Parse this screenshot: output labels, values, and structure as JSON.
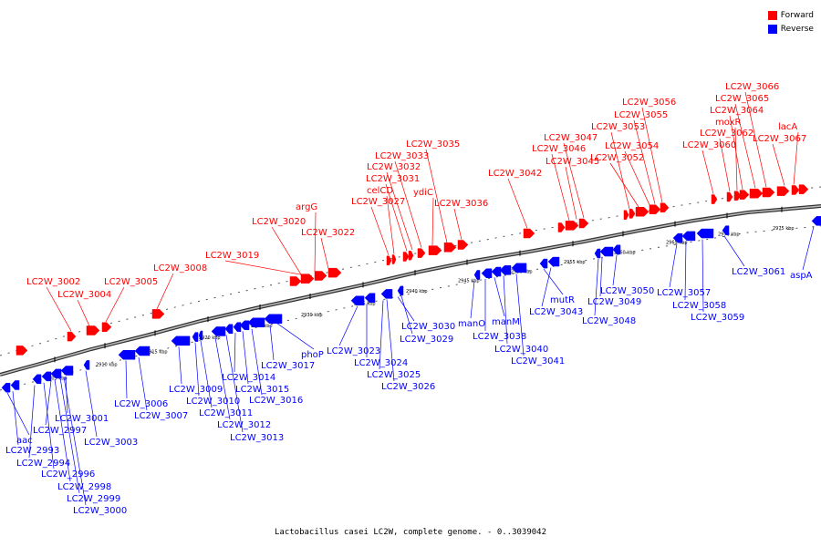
{
  "legend": {
    "forward_label": "Forward",
    "reverse_label": "Reverse",
    "forward_color": "#ff0000",
    "reverse_color": "#0000ff"
  },
  "caption": "Lactobacillus casei LC2W, complete genome. - 0..3039042",
  "ticks": [
    "2905 kbp",
    "2910 kbp",
    "2915 kbp",
    "2920 kbp",
    "2925 kbp",
    "2930 kbp",
    "2935 kbp",
    "2940 kbp",
    "2945 kbp",
    "2950 kbp",
    "2955 kbp",
    "2960 kbp",
    "2965 kbp",
    "2970 kbp",
    "2975 kbp"
  ],
  "forward_labels": [
    "LC2W_3002",
    "LC2W_3004",
    "LC2W_3005",
    "LC2W_3008",
    "LC2W_3019",
    "LC2W_3020",
    "argG",
    "LC2W_3022",
    "LC2W_3027",
    "celCD",
    "LC2W_3031",
    "LC2W_3032",
    "LC2W_3033",
    "LC2W_3035",
    "ydiC",
    "LC2W_3036",
    "LC2W_3042",
    "LC2W_3045",
    "LC2W_3046",
    "LC2W_3047",
    "LC2W_3052",
    "LC2W_3054",
    "LC2W_3053",
    "LC2W_3055",
    "LC2W_3056",
    "LC2W_3060",
    "LC2W_3062",
    "moxR",
    "LC2W_3064",
    "LC2W_3065",
    "LC2W_3066",
    "LC2W_3067",
    "lacA"
  ],
  "reverse_labels": [
    "aac",
    "LC2W_2993",
    "LC2W_2994",
    "LC2W_2996",
    "LC2W_2997",
    "LC2W_2998",
    "LC2W_2999",
    "LC2W_3000",
    "LC2W_3001",
    "LC2W_3003",
    "LC2W_3006",
    "LC2W_3007",
    "LC2W_3009",
    "LC2W_3010",
    "LC2W_3011",
    "LC2W_3012",
    "LC2W_3013",
    "LC2W_3014",
    "LC2W_3015",
    "LC2W_3016",
    "LC2W_3017",
    "phoP",
    "LC2W_3023",
    "LC2W_3024",
    "LC2W_3025",
    "LC2W_3026",
    "LC2W_3029",
    "LC2W_3030",
    "manO",
    "LC2W_3038",
    "manM",
    "LC2W_3040",
    "LC2W_3041",
    "mutR",
    "LC2W_3043",
    "LC2W_3048",
    "LC2W_3049",
    "LC2W_3050",
    "LC2W_3057",
    "LC2W_3058",
    "LC2W_3059",
    "LC2W_3061",
    "aspA"
  ]
}
